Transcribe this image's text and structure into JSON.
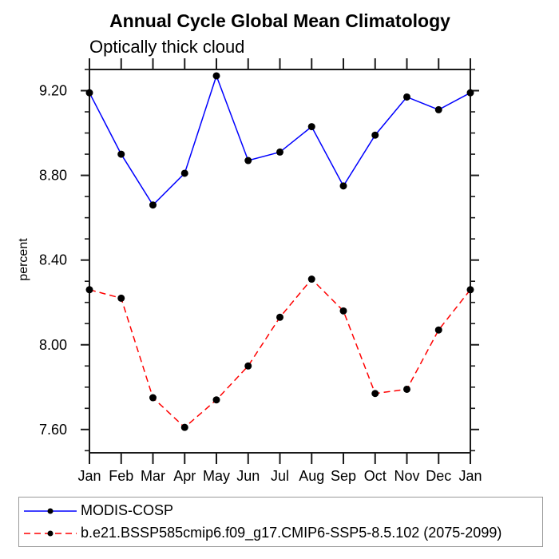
{
  "chart_data": {
    "type": "line",
    "title": "Annual Cycle Global Mean Climatology",
    "subtitle": "Optically thick cloud",
    "ylabel": "percent",
    "xlabel": "",
    "categories": [
      "Jan",
      "Feb",
      "Mar",
      "Apr",
      "May",
      "Jun",
      "Jul",
      "Aug",
      "Sep",
      "Oct",
      "Nov",
      "Dec",
      "Jan"
    ],
    "series": [
      {
        "name": "MODIS-COSP",
        "color": "#0000ff",
        "line_style": "solid",
        "marker": "filled-circle",
        "marker_color": "#000000",
        "values": [
          9.19,
          8.9,
          8.66,
          8.81,
          9.27,
          8.87,
          8.91,
          9.03,
          8.75,
          8.99,
          9.17,
          9.11,
          9.19
        ]
      },
      {
        "name": "b.e21.BSSP585cmip6.f09_g17.CMIP6-SSP5-8.5.102 (2075-2099)",
        "color": "#ff0000",
        "line_style": "dashed",
        "marker": "filled-circle",
        "marker_color": "#000000",
        "values": [
          8.26,
          8.22,
          7.75,
          7.61,
          7.74,
          7.9,
          8.13,
          8.31,
          8.16,
          7.77,
          7.79,
          8.07,
          8.26
        ]
      }
    ],
    "ylim": [
      7.49,
      9.3
    ],
    "y_major_ticks": [
      7.6,
      8.0,
      8.4,
      8.8,
      9.2
    ],
    "y_tick_labels": [
      "7.60",
      "8.00",
      "8.40",
      "8.80",
      "9.20"
    ],
    "y_minor_step": 0.1,
    "grid": false,
    "legend_position": "bottom",
    "axis_color": "#1a1a1a"
  }
}
